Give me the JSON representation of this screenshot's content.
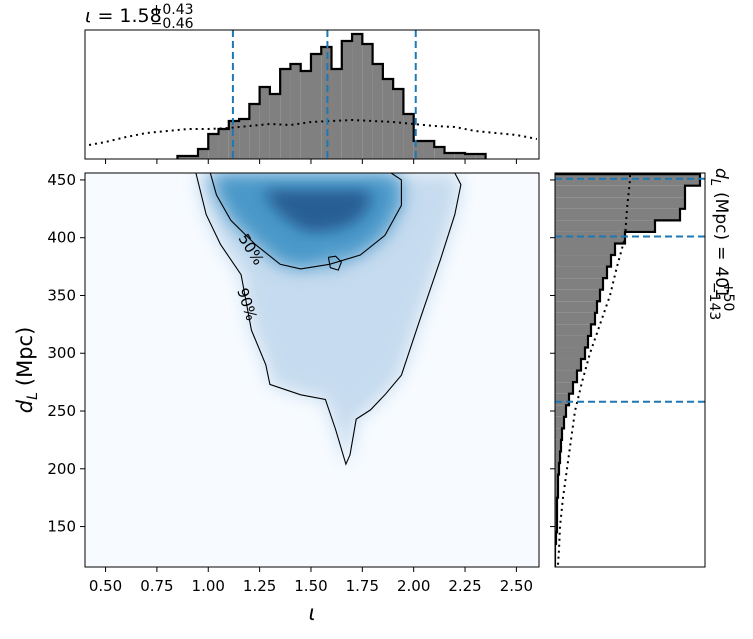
{
  "chart_data": {
    "type": "joint",
    "title": {
      "symbol": "ι",
      "eq": "=",
      "median": "1.58",
      "plus": "+0.43",
      "minus": "−0.46"
    },
    "side_title": {
      "symbol": "d",
      "sub": "L",
      "unit": "(Mpc)",
      "eq": "=",
      "median": "401",
      "plus": "+50",
      "minus": "−143"
    },
    "xlabel": "ι",
    "ylabel": {
      "symbol": "d",
      "sub": "L",
      "unit": "(Mpc)"
    },
    "xlim": [
      0.4,
      2.61
    ],
    "ylim": [
      115,
      456
    ],
    "xticks": [
      {
        "value": 0.5,
        "label": "0.50"
      },
      {
        "value": 0.75,
        "label": "0.75"
      },
      {
        "value": 1.0,
        "label": "1.00"
      },
      {
        "value": 1.25,
        "label": "1.25"
      },
      {
        "value": 1.5,
        "label": "1.50"
      },
      {
        "value": 1.75,
        "label": "1.75"
      },
      {
        "value": 2.0,
        "label": "2.00"
      },
      {
        "value": 2.25,
        "label": "2.25"
      },
      {
        "value": 2.5,
        "label": "2.50"
      }
    ],
    "yticks": [
      150,
      200,
      250,
      300,
      350,
      400,
      450
    ],
    "contours": [
      {
        "label": "90%",
        "x": [
          0.94,
          0.99,
          1.06,
          1.16,
          1.21,
          1.28,
          1.3,
          1.45,
          1.57,
          1.62,
          1.67,
          1.69,
          1.72,
          1.79,
          1.86,
          1.94,
          2.03,
          2.13,
          2.2,
          2.23,
          2.2
        ],
        "y": [
          456,
          420,
          394,
          368,
          320,
          290,
          273,
          264,
          260,
          234,
          204,
          212,
          243,
          251,
          264,
          281,
          329,
          381,
          420,
          446,
          456
        ]
      },
      {
        "label": "50%",
        "x": [
          1.01,
          1.04,
          1.11,
          1.23,
          1.35,
          1.45,
          1.59,
          1.74,
          1.86,
          1.94,
          1.94,
          1.89,
          null,
          1.585,
          1.62,
          1.648,
          1.633,
          1.594,
          1.585
        ],
        "y": [
          456,
          437,
          415,
          394,
          377,
          373,
          377,
          385,
          402,
          428,
          450,
          456,
          null,
          383,
          384,
          379,
          372,
          374,
          383
        ]
      }
    ],
    "x_hist": {
      "bins": [
        0.85,
        0.9,
        0.95,
        1.0,
        1.05,
        1.1,
        1.15,
        1.2,
        1.25,
        1.3,
        1.35,
        1.4,
        1.45,
        1.5,
        1.55,
        1.6,
        1.65,
        1.7,
        1.75,
        1.8,
        1.85,
        1.9,
        1.95,
        2.0,
        2.05,
        2.1,
        2.15,
        2.2,
        2.25,
        2.3,
        2.35
      ],
      "counts": [
        3,
        3,
        10,
        25,
        30,
        38,
        40,
        55,
        72,
        65,
        90,
        95,
        88,
        105,
        112,
        90,
        118,
        125,
        115,
        95,
        80,
        70,
        45,
        18,
        18,
        12,
        6,
        6,
        5,
        5
      ],
      "lim": [
        0,
        129
      ],
      "color": "#808080"
    },
    "x_prior": {
      "x": [
        0.42,
        0.5,
        0.6,
        0.7,
        0.8,
        0.9,
        1.0,
        1.1,
        1.2,
        1.3,
        1.4,
        1.5,
        1.6,
        1.7,
        1.8,
        1.9,
        2.0,
        2.1,
        2.2,
        2.3,
        2.4,
        2.5,
        2.6
      ],
      "values": [
        14,
        17,
        22,
        26,
        28,
        30,
        30,
        31,
        33,
        35,
        34,
        37,
        38,
        39,
        38,
        37,
        35,
        33,
        32,
        28,
        26,
        24,
        20
      ]
    },
    "x_quantiles": [
      1.12,
      1.58,
      2.01
    ],
    "y_hist": {
      "bins": [
        115,
        125,
        135,
        145,
        155,
        165,
        175,
        185,
        195,
        205,
        215,
        225,
        235,
        245,
        255,
        265,
        275,
        285,
        295,
        305,
        315,
        325,
        335,
        345,
        355,
        365,
        375,
        385,
        395,
        405,
        415,
        425,
        435,
        445,
        455
      ],
      "counts": [
        0,
        0,
        1,
        2,
        2,
        2,
        3,
        3,
        4,
        5,
        6,
        7,
        9,
        11,
        14,
        18,
        22,
        26,
        30,
        33,
        36,
        40,
        42,
        45,
        48,
        52,
        56,
        60,
        70,
        100,
        125,
        130,
        130,
        145
      ],
      "lim": [
        0,
        150
      ],
      "color": "#808080"
    },
    "y_prior": {
      "y": [
        117,
        130,
        150,
        175,
        200,
        225,
        250,
        275,
        300,
        325,
        350,
        375,
        400,
        425,
        450,
        456
      ],
      "values": [
        3,
        4,
        5,
        8,
        12,
        16,
        20,
        27,
        35,
        45,
        55,
        62,
        70,
        72,
        75,
        75
      ]
    },
    "y_quantiles": [
      258,
      401,
      451
    ],
    "quantile_color": "#1f77b4"
  }
}
